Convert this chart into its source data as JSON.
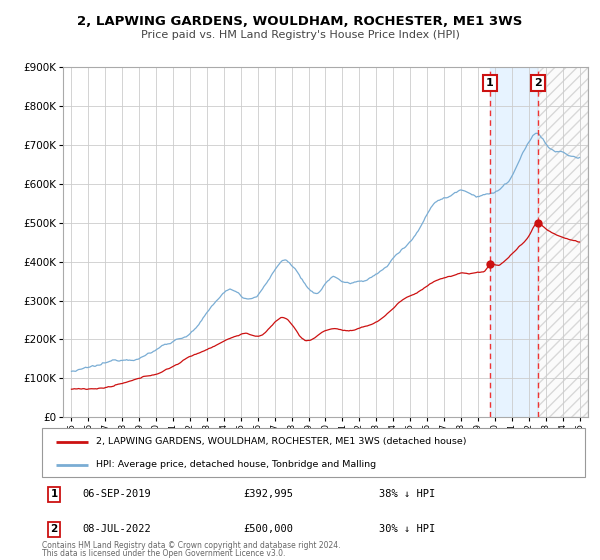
{
  "title": "2, LAPWING GARDENS, WOULDHAM, ROCHESTER, ME1 3WS",
  "subtitle": "Price paid vs. HM Land Registry's House Price Index (HPI)",
  "background_color": "#ffffff",
  "plot_bg_color": "#ffffff",
  "grid_color": "#cccccc",
  "hpi_color": "#7aadd4",
  "price_color": "#cc1111",
  "marker1_date": 2019.71,
  "marker1_price": 392995,
  "marker2_date": 2022.54,
  "marker2_price": 500000,
  "marker1_label": "06-SEP-2019",
  "marker1_amount": "£392,995",
  "marker1_pct": "38% ↓ HPI",
  "marker2_label": "08-JUL-2022",
  "marker2_amount": "£500,000",
  "marker2_pct": "30% ↓ HPI",
  "ylim": [
    0,
    900000
  ],
  "xlim": [
    1994.5,
    2025.5
  ],
  "legend_label_price": "2, LAPWING GARDENS, WOULDHAM, ROCHESTER, ME1 3WS (detached house)",
  "legend_label_hpi": "HPI: Average price, detached house, Tonbridge and Malling",
  "footer1": "Contains HM Land Registry data © Crown copyright and database right 2024.",
  "footer2": "This data is licensed under the Open Government Licence v3.0."
}
